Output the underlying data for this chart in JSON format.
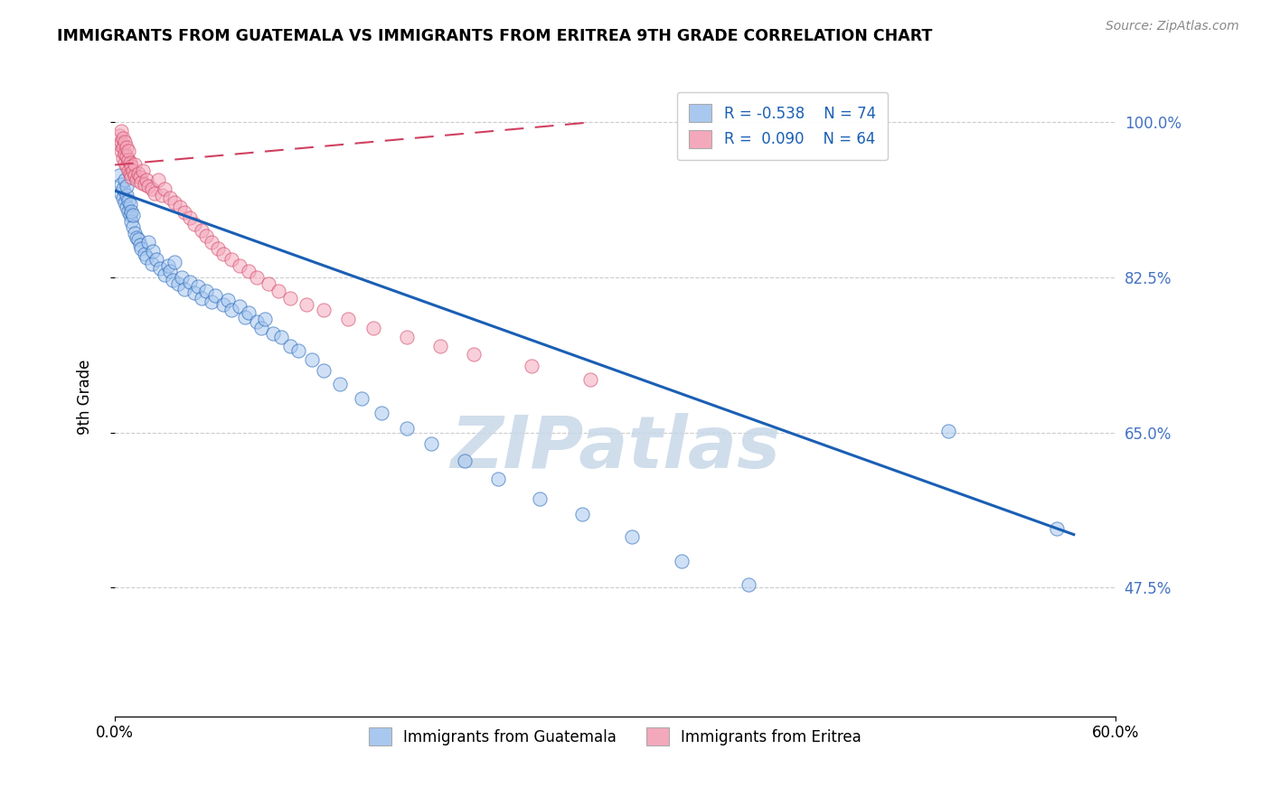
{
  "title": "IMMIGRANTS FROM GUATEMALA VS IMMIGRANTS FROM ERITREA 9TH GRADE CORRELATION CHART",
  "source_text": "Source: ZipAtlas.com",
  "xlabel_blue": "Immigrants from Guatemala",
  "xlabel_pink": "Immigrants from Eritrea",
  "ylabel": "9th Grade",
  "xlim": [
    0.0,
    0.6
  ],
  "ylim": [
    0.33,
    1.05
  ],
  "xtick_labels": [
    "0.0%",
    "60.0%"
  ],
  "ytick_labels": [
    "100.0%",
    "82.5%",
    "65.0%",
    "47.5%"
  ],
  "ytick_values": [
    1.0,
    0.825,
    0.65,
    0.475
  ],
  "legend_blue_r": "R = -0.538",
  "legend_blue_n": "N = 74",
  "legend_pink_r": "R =  0.090",
  "legend_pink_n": "N = 64",
  "blue_color": "#A8C8F0",
  "pink_color": "#F4A8BC",
  "blue_line_color": "#1A5FB4",
  "pink_line_color": "#D04060",
  "watermark_color": "#C8D8E8",
  "watermark_text": "ZIPatlas",
  "blue_line_x0": 0.0,
  "blue_line_y0": 0.923,
  "blue_line_x1": 0.575,
  "blue_line_y1": 0.535,
  "pink_line_x0": 0.0,
  "pink_line_y0": 0.952,
  "pink_line_x1": 0.285,
  "pink_line_y1": 1.0,
  "blue_scatter_x": [
    0.003,
    0.004,
    0.004,
    0.005,
    0.005,
    0.006,
    0.006,
    0.007,
    0.007,
    0.007,
    0.008,
    0.008,
    0.009,
    0.009,
    0.01,
    0.01,
    0.011,
    0.011,
    0.012,
    0.013,
    0.014,
    0.015,
    0.016,
    0.018,
    0.019,
    0.02,
    0.022,
    0.023,
    0.025,
    0.027,
    0.03,
    0.032,
    0.033,
    0.035,
    0.036,
    0.038,
    0.04,
    0.042,
    0.045,
    0.048,
    0.05,
    0.052,
    0.055,
    0.058,
    0.06,
    0.065,
    0.068,
    0.07,
    0.075,
    0.078,
    0.08,
    0.085,
    0.088,
    0.09,
    0.095,
    0.1,
    0.105,
    0.11,
    0.118,
    0.125,
    0.135,
    0.148,
    0.16,
    0.175,
    0.19,
    0.21,
    0.23,
    0.255,
    0.28,
    0.31,
    0.34,
    0.38,
    0.5,
    0.565
  ],
  "blue_scatter_y": [
    0.94,
    0.92,
    0.93,
    0.915,
    0.925,
    0.91,
    0.935,
    0.905,
    0.918,
    0.928,
    0.9,
    0.912,
    0.895,
    0.908,
    0.888,
    0.9,
    0.882,
    0.895,
    0.875,
    0.87,
    0.868,
    0.862,
    0.858,
    0.852,
    0.848,
    0.865,
    0.84,
    0.855,
    0.845,
    0.835,
    0.828,
    0.838,
    0.832,
    0.822,
    0.842,
    0.818,
    0.825,
    0.812,
    0.82,
    0.808,
    0.815,
    0.802,
    0.81,
    0.798,
    0.805,
    0.795,
    0.8,
    0.788,
    0.792,
    0.78,
    0.785,
    0.775,
    0.768,
    0.778,
    0.762,
    0.758,
    0.748,
    0.742,
    0.732,
    0.72,
    0.705,
    0.688,
    0.672,
    0.655,
    0.638,
    0.618,
    0.598,
    0.575,
    0.558,
    0.532,
    0.505,
    0.478,
    0.652,
    0.542
  ],
  "pink_scatter_x": [
    0.003,
    0.003,
    0.004,
    0.004,
    0.004,
    0.005,
    0.005,
    0.005,
    0.006,
    0.006,
    0.006,
    0.007,
    0.007,
    0.007,
    0.008,
    0.008,
    0.008,
    0.009,
    0.009,
    0.01,
    0.01,
    0.011,
    0.012,
    0.012,
    0.013,
    0.014,
    0.015,
    0.016,
    0.017,
    0.018,
    0.019,
    0.02,
    0.022,
    0.024,
    0.026,
    0.028,
    0.03,
    0.033,
    0.036,
    0.039,
    0.042,
    0.045,
    0.048,
    0.052,
    0.055,
    0.058,
    0.062,
    0.065,
    0.07,
    0.075,
    0.08,
    0.085,
    0.092,
    0.098,
    0.105,
    0.115,
    0.125,
    0.14,
    0.155,
    0.175,
    0.195,
    0.215,
    0.25,
    0.285
  ],
  "pink_scatter_y": [
    0.975,
    0.985,
    0.968,
    0.978,
    0.99,
    0.96,
    0.972,
    0.982,
    0.955,
    0.965,
    0.978,
    0.95,
    0.962,
    0.972,
    0.945,
    0.958,
    0.968,
    0.942,
    0.955,
    0.938,
    0.95,
    0.945,
    0.94,
    0.952,
    0.935,
    0.942,
    0.938,
    0.932,
    0.945,
    0.93,
    0.935,
    0.928,
    0.925,
    0.92,
    0.935,
    0.918,
    0.925,
    0.915,
    0.91,
    0.905,
    0.898,
    0.892,
    0.885,
    0.878,
    0.872,
    0.865,
    0.858,
    0.852,
    0.845,
    0.838,
    0.832,
    0.825,
    0.818,
    0.81,
    0.802,
    0.795,
    0.788,
    0.778,
    0.768,
    0.758,
    0.748,
    0.738,
    0.725,
    0.71
  ]
}
